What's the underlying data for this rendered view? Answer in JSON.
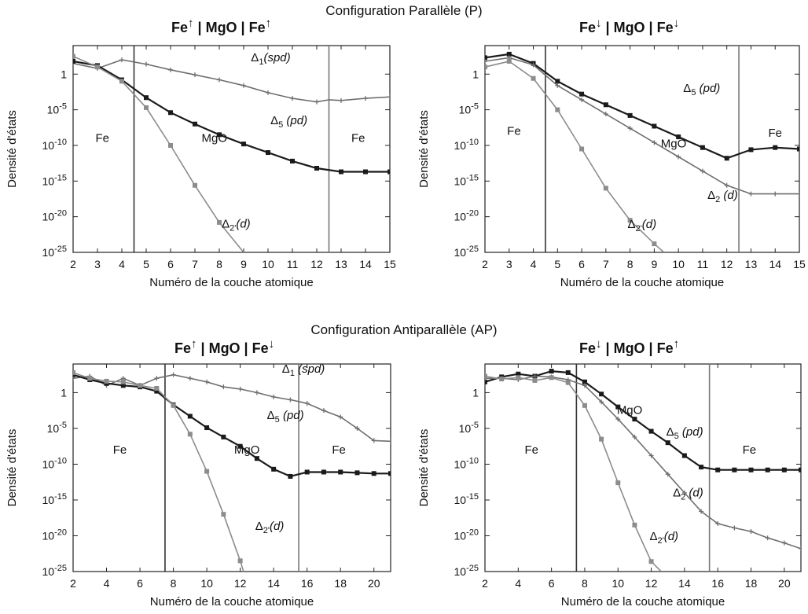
{
  "section_titles": {
    "parallel": "Configuration Parallèle (P)",
    "antiparallel": "Configuration Antiparallèle (AP)"
  },
  "colors": {
    "dark": "#1a1a1a",
    "mid": "#6f6f6f",
    "light": "#8c8c8c"
  },
  "chart_data": [
    {
      "type": "line",
      "panel": "p-left",
      "title": {
        "spin_left": "↑",
        "spin_right": "↑",
        "left": "Fe",
        "middle": "| MgO |",
        "right": "Fe"
      },
      "xlabel": "Numéro de la couche atomique",
      "ylabel": "Densité d'états",
      "xlim": [
        2,
        15
      ],
      "ylim_log10": [
        -25,
        4
      ],
      "xticks": [
        2,
        3,
        4,
        5,
        6,
        7,
        8,
        9,
        10,
        11,
        12,
        13,
        14,
        15
      ],
      "yticks": [
        "1",
        "10-5",
        "10-10",
        "10-15",
        "10-20",
        "10-25"
      ],
      "interfaces": [
        4.5,
        12.5
      ],
      "region_labels": [
        {
          "text": "Fe",
          "x": 3.2,
          "y_log10": -9.5
        },
        {
          "text": "MgO",
          "x": 7.8,
          "y_log10": -9.5
        },
        {
          "text": "Fe",
          "x": 13.7,
          "y_log10": -9.5
        }
      ],
      "series": [
        {
          "name": "Δ1(spd)",
          "label_x": 9.3,
          "label_y_log10": 1.8,
          "style": "mid",
          "marker": "plus",
          "x": [
            2,
            3,
            4,
            5,
            6,
            7,
            8,
            9,
            10,
            11,
            12,
            12.5,
            13,
            14,
            15
          ],
          "y_log10": [
            1.5,
            0.8,
            2.0,
            1.4,
            0.6,
            -0.1,
            -0.8,
            -1.6,
            -2.6,
            -3.4,
            -3.9,
            -3.6,
            -3.7,
            -3.4,
            -3.2
          ]
        },
        {
          "name": "Δ5 (pd)",
          "label_x": 10.1,
          "label_y_log10": -7.0,
          "style": "dark",
          "marker": "square",
          "x": [
            2,
            3,
            4,
            5,
            6,
            7,
            8,
            9,
            10,
            11,
            12,
            13,
            14,
            15
          ],
          "y_log10": [
            1.8,
            1.2,
            -0.8,
            -3.3,
            -5.4,
            -7.0,
            -8.5,
            -9.8,
            -11.0,
            -12.2,
            -13.2,
            -13.7,
            -13.7,
            -13.7
          ]
        },
        {
          "name": "Δ2'(d)",
          "label_x": 8.1,
          "label_y_log10": -21.5,
          "style": "light",
          "marker": "square",
          "x": [
            2,
            3,
            4,
            5,
            6,
            7,
            8,
            9
          ],
          "y_log10": [
            2.5,
            1.0,
            -1.0,
            -4.7,
            -10.0,
            -15.6,
            -20.8,
            -25
          ]
        }
      ]
    },
    {
      "type": "line",
      "panel": "p-right",
      "title": {
        "spin_left": "↓",
        "spin_right": "↓",
        "left": "Fe",
        "middle": "| MgO |",
        "right": "Fe"
      },
      "xlabel": "Numéro de la couche atomique",
      "ylabel": "Densité d'états",
      "xlim": [
        2,
        15
      ],
      "ylim_log10": [
        -25,
        4
      ],
      "xticks": [
        2,
        3,
        4,
        5,
        6,
        7,
        8,
        9,
        10,
        11,
        12,
        13,
        14,
        15
      ],
      "yticks": [
        "1",
        "10-5",
        "10-10",
        "10-15",
        "10-20",
        "10-25"
      ],
      "interfaces": [
        4.5,
        12.5
      ],
      "region_labels": [
        {
          "text": "Fe",
          "x": 3.2,
          "y_log10": -8.5
        },
        {
          "text": "MgO",
          "x": 9.8,
          "y_log10": -10.3
        },
        {
          "text": "Fe",
          "x": 14.0,
          "y_log10": -8.8
        }
      ],
      "series": [
        {
          "name": "Δ5 (pd)",
          "label_x": 10.2,
          "label_y_log10": -2.5,
          "style": "dark",
          "marker": "square",
          "x": [
            2,
            3,
            4,
            5,
            6,
            7,
            8,
            9,
            10,
            11,
            12,
            13,
            14,
            15
          ],
          "y_log10": [
            2.3,
            2.8,
            1.5,
            -1.0,
            -2.8,
            -4.3,
            -5.8,
            -7.3,
            -8.8,
            -10.3,
            -11.8,
            -10.6,
            -10.3,
            -10.5
          ]
        },
        {
          "name": "Δ2 (d)",
          "label_x": 11.2,
          "label_y_log10": -17.5,
          "style": "mid",
          "marker": "plus",
          "x": [
            2,
            3,
            4,
            5,
            6,
            7,
            8,
            9,
            10,
            11,
            12,
            13,
            14,
            15
          ],
          "y_log10": [
            1.8,
            2.3,
            1.3,
            -1.6,
            -3.6,
            -5.6,
            -7.6,
            -9.6,
            -11.6,
            -13.6,
            -15.6,
            -16.8,
            -16.8,
            -16.8
          ]
        },
        {
          "name": "Δ2'(d)",
          "label_x": 7.9,
          "label_y_log10": -21.6,
          "style": "light",
          "marker": "square",
          "x": [
            2,
            3,
            4,
            5,
            6,
            7,
            8,
            9,
            9.4
          ],
          "y_log10": [
            1.0,
            1.8,
            -0.6,
            -5.0,
            -10.5,
            -16.0,
            -20.5,
            -23.8,
            -25
          ]
        }
      ]
    },
    {
      "type": "line",
      "panel": "ap-left",
      "title": {
        "spin_left": "↑",
        "spin_right": "↓",
        "left": "Fe",
        "middle": "| MgO |",
        "right": "Fe"
      },
      "xlabel": "Numéro de la couche atomique",
      "ylabel": "Densité d'états",
      "xlim": [
        2,
        21
      ],
      "ylim_log10": [
        -25,
        4
      ],
      "xticks": [
        2,
        4,
        6,
        8,
        10,
        12,
        14,
        16,
        18,
        20
      ],
      "yticks": [
        "1",
        "10-5",
        "10-10",
        "10-15",
        "10-20",
        "10-25"
      ],
      "interfaces": [
        7.5,
        15.5
      ],
      "region_labels": [
        {
          "text": "Fe",
          "x": 4.8,
          "y_log10": -8.5
        },
        {
          "text": "MgO",
          "x": 12.4,
          "y_log10": -8.5
        },
        {
          "text": "Fe",
          "x": 17.9,
          "y_log10": -8.5
        }
      ],
      "series": [
        {
          "name": "Δ1 (spd)",
          "label_x": 14.5,
          "label_y_log10": 2.8,
          "style": "mid",
          "marker": "plus",
          "x": [
            2,
            3,
            4,
            5,
            6,
            7,
            8,
            9,
            10,
            11,
            12,
            13,
            14,
            15,
            16,
            17,
            18,
            19,
            20,
            21
          ],
          "y_log10": [
            2.0,
            2.3,
            1.0,
            2.0,
            1.0,
            2.0,
            2.5,
            2.0,
            1.5,
            0.8,
            0.5,
            0.0,
            -0.6,
            -1.0,
            -1.5,
            -2.5,
            -3.4,
            -5.0,
            -6.7,
            -6.8
          ]
        },
        {
          "name": "Δ5 (pd)",
          "label_x": 13.6,
          "label_y_log10": -3.7,
          "style": "dark",
          "marker": "square",
          "x": [
            2,
            3,
            4,
            5,
            6,
            7,
            8,
            9,
            10,
            11,
            12,
            13,
            14,
            15,
            16,
            17,
            18,
            19,
            20,
            21
          ],
          "y_log10": [
            2.5,
            1.8,
            1.3,
            1.0,
            0.8,
            0.2,
            -1.7,
            -3.3,
            -4.9,
            -6.2,
            -7.5,
            -9.2,
            -10.7,
            -11.7,
            -11.1,
            -11.1,
            -11.1,
            -11.2,
            -11.3,
            -11.3
          ]
        },
        {
          "name": "Δ2'(d)",
          "label_x": 12.9,
          "label_y_log10": -19.2,
          "style": "light",
          "marker": "square",
          "x": [
            2,
            3,
            4,
            5,
            6,
            7,
            8,
            9,
            10,
            11,
            12,
            12.2
          ],
          "y_log10": [
            2.8,
            2.0,
            1.6,
            1.5,
            1.0,
            0.6,
            -1.8,
            -5.8,
            -11.0,
            -17.0,
            -23.5,
            -25
          ]
        }
      ]
    },
    {
      "type": "line",
      "panel": "ap-right",
      "title": {
        "spin_left": "↓",
        "spin_right": "↑",
        "left": "Fe",
        "middle": "| MgO |",
        "right": "Fe"
      },
      "xlabel": "Numéro de la couche atomique",
      "ylabel": "Densité d'états",
      "xlim": [
        2,
        21
      ],
      "ylim_log10": [
        -25,
        4
      ],
      "xticks": [
        2,
        4,
        6,
        8,
        10,
        12,
        14,
        16,
        18,
        20
      ],
      "yticks": [
        "1",
        "10-5",
        "10-10",
        "10-15",
        "10-20",
        "10-25"
      ],
      "interfaces": [
        7.5,
        15.5
      ],
      "region_labels": [
        {
          "text": "MgO",
          "x": 10.7,
          "y_log10": -3.0
        },
        {
          "text": "Fe",
          "x": 4.8,
          "y_log10": -8.5
        },
        {
          "text": "Fe",
          "x": 17.9,
          "y_log10": -8.5
        }
      ],
      "series": [
        {
          "name": "Δ5 (pd)",
          "label_x": 12.9,
          "label_y_log10": -6.0,
          "style": "dark",
          "marker": "square",
          "x": [
            2,
            3,
            4,
            5,
            6,
            7,
            8,
            9,
            10,
            11,
            12,
            13,
            14,
            15,
            16,
            17,
            18,
            19,
            20,
            21
          ],
          "y_log10": [
            1.5,
            2.2,
            2.6,
            2.3,
            3.0,
            2.8,
            1.5,
            -0.2,
            -2.0,
            -3.7,
            -5.4,
            -7.0,
            -8.8,
            -10.4,
            -10.8,
            -10.8,
            -10.8,
            -10.8,
            -10.8,
            -10.8
          ]
        },
        {
          "name": "Δ2 (d)",
          "label_x": 13.3,
          "label_y_log10": -14.5,
          "style": "mid",
          "marker": "plus",
          "x": [
            2,
            3,
            4,
            5,
            6,
            7,
            8,
            9,
            10,
            11,
            12,
            13,
            14,
            15,
            16,
            17,
            18,
            19,
            20,
            21
          ],
          "y_log10": [
            2.0,
            2.0,
            1.8,
            2.3,
            2.2,
            1.8,
            1.0,
            -1.3,
            -3.7,
            -6.2,
            -8.8,
            -11.4,
            -14.0,
            -16.6,
            -18.3,
            -18.9,
            -19.4,
            -20.3,
            -21.0,
            -21.8
          ]
        },
        {
          "name": "Δ2'(d)",
          "label_x": 11.9,
          "label_y_log10": -20.6,
          "style": "light",
          "marker": "square",
          "x": [
            2,
            3,
            4,
            5,
            6,
            7,
            8,
            9,
            10,
            11,
            12,
            12.6
          ],
          "y_log10": [
            2.3,
            1.9,
            2.1,
            1.7,
            2.1,
            1.4,
            -1.8,
            -6.5,
            -12.6,
            -18.5,
            -23.6,
            -25
          ]
        }
      ]
    }
  ]
}
